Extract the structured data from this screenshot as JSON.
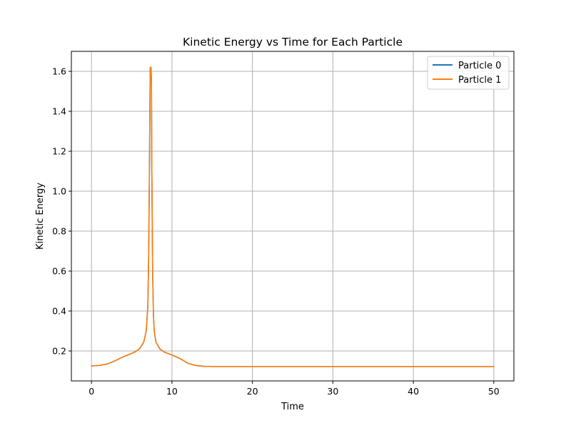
{
  "chart_data": {
    "type": "line",
    "title": "Kinetic Energy vs Time for Each Particle",
    "xlabel": "Time",
    "ylabel": "Kinetic Energy",
    "xlim": [
      -2.5,
      52.5
    ],
    "ylim": [
      0.05,
      1.7
    ],
    "xticks": [
      0,
      10,
      20,
      30,
      40,
      50
    ],
    "xtick_labels": [
      "0",
      "10",
      "20",
      "30",
      "40",
      "50"
    ],
    "yticks": [
      0.2,
      0.4,
      0.6,
      0.8,
      1.0,
      1.2,
      1.4,
      1.6
    ],
    "ytick_labels": [
      "0.2",
      "0.4",
      "0.6",
      "0.8",
      "1.0",
      "1.2",
      "1.4",
      "1.6"
    ],
    "grid": true,
    "legend_position": "top-right",
    "series": [
      {
        "name": "Particle 0",
        "color": "#1f77b4",
        "x": [
          0,
          1,
          2,
          3,
          4,
          5,
          5.5,
          6,
          6.5,
          6.8,
          7.0,
          7.1,
          7.2,
          7.3,
          7.35,
          7.4,
          7.45,
          7.5,
          7.6,
          7.7,
          7.8,
          8.0,
          8.5,
          9,
          10,
          11,
          12,
          13,
          14,
          15,
          16,
          18,
          20,
          25,
          30,
          35,
          40,
          45,
          50
        ],
        "y": [
          0.125,
          0.128,
          0.135,
          0.152,
          0.172,
          0.188,
          0.197,
          0.212,
          0.245,
          0.3,
          0.42,
          0.65,
          1.1,
          1.62,
          1.61,
          1.62,
          1.55,
          1.1,
          0.6,
          0.38,
          0.3,
          0.245,
          0.21,
          0.195,
          0.18,
          0.162,
          0.138,
          0.127,
          0.123,
          0.122,
          0.122,
          0.122,
          0.122,
          0.122,
          0.122,
          0.122,
          0.122,
          0.122,
          0.122
        ]
      },
      {
        "name": "Particle 1",
        "color": "#ff7f0e",
        "x": [
          0,
          1,
          2,
          3,
          4,
          5,
          5.5,
          6,
          6.5,
          6.8,
          7.0,
          7.1,
          7.2,
          7.3,
          7.35,
          7.4,
          7.45,
          7.5,
          7.6,
          7.7,
          7.8,
          8.0,
          8.5,
          9,
          10,
          11,
          12,
          13,
          14,
          15,
          16,
          18,
          20,
          25,
          30,
          35,
          40,
          45,
          50
        ],
        "y": [
          0.125,
          0.128,
          0.135,
          0.152,
          0.172,
          0.188,
          0.197,
          0.212,
          0.245,
          0.3,
          0.42,
          0.65,
          1.1,
          1.62,
          1.61,
          1.62,
          1.55,
          1.1,
          0.6,
          0.38,
          0.3,
          0.245,
          0.21,
          0.195,
          0.18,
          0.162,
          0.138,
          0.127,
          0.123,
          0.122,
          0.122,
          0.122,
          0.122,
          0.122,
          0.122,
          0.122,
          0.122,
          0.122,
          0.122
        ]
      }
    ]
  }
}
